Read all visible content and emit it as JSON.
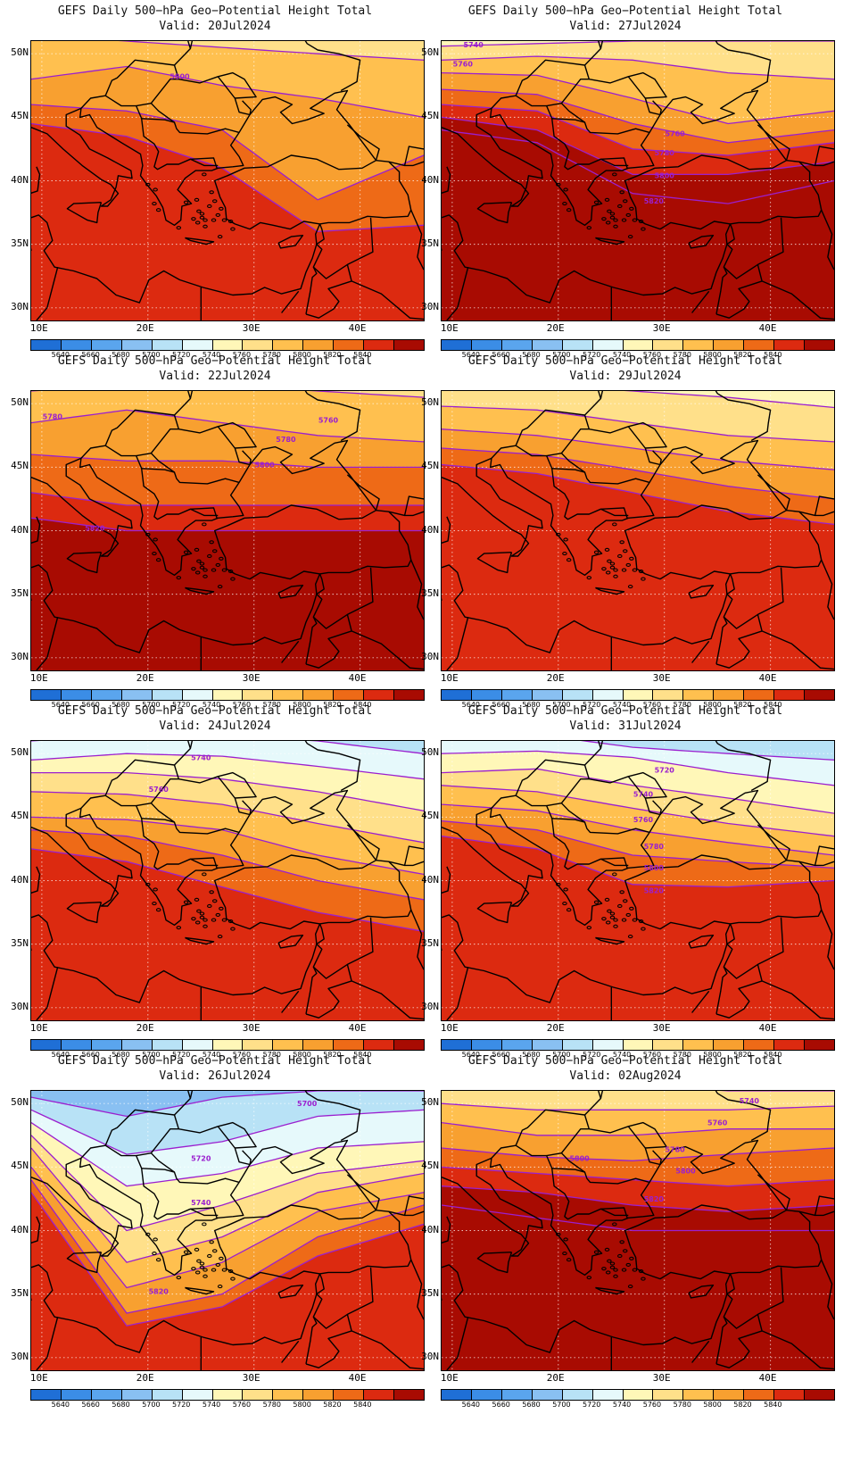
{
  "colorbar": {
    "levels": [
      "5640",
      "5660",
      "5680",
      "5700",
      "5720",
      "5740",
      "5760",
      "5780",
      "5800",
      "5820",
      "5840"
    ],
    "colors": [
      "#1f6fd6",
      "#3b8de6",
      "#5aa5ee",
      "#89c0f2",
      "#b8e2f6",
      "#e6f9fb",
      "#fff7b8",
      "#ffe08a",
      "#ffc04f",
      "#f8a030",
      "#ee6a17",
      "#dc2a10",
      "#a80b02"
    ]
  },
  "axes": {
    "yticks": [
      "50N",
      "45N",
      "40N",
      "35N",
      "30N"
    ],
    "xticks": [
      "10E",
      "20E",
      "30E",
      "40E"
    ],
    "lat_range": [
      29,
      51
    ],
    "lon_range": [
      9,
      46
    ]
  },
  "contour_color": "#9b1fcf",
  "panels": [
    {
      "title": "GEFS Daily 500−hPa Geo−Potential Height Total",
      "valid": "Valid: 20Jul2024",
      "labels": [
        {
          "text": "5800",
          "lon": 23,
          "lat": 48
        }
      ]
    },
    {
      "title": "GEFS Daily 500−hPa Geo−Potential Height Total",
      "valid": "Valid: 27Jul2024",
      "labels": [
        {
          "text": "5740",
          "lon": 12,
          "lat": 50.5
        },
        {
          "text": "5760",
          "lon": 11,
          "lat": 49
        },
        {
          "text": "5760",
          "lon": 31,
          "lat": 43.5
        },
        {
          "text": "5780",
          "lon": 30,
          "lat": 42
        },
        {
          "text": "5800",
          "lon": 30,
          "lat": 40.2
        },
        {
          "text": "5820",
          "lon": 29,
          "lat": 38.2
        }
      ]
    },
    {
      "title": "GEFS Daily 500−hPa Geo−Potential Height Total",
      "valid": "Valid: 22Jul2024",
      "labels": [
        {
          "text": "5780",
          "lon": 11,
          "lat": 48.8
        },
        {
          "text": "5760",
          "lon": 37,
          "lat": 48.5
        },
        {
          "text": "5780",
          "lon": 33,
          "lat": 47
        },
        {
          "text": "5800",
          "lon": 31,
          "lat": 45
        },
        {
          "text": "5820",
          "lon": 15,
          "lat": 40
        }
      ]
    },
    {
      "title": "GEFS Daily 500−hPa Geo−Potential Height Total",
      "valid": "Valid: 29Jul2024",
      "labels": []
    },
    {
      "title": "GEFS Daily 500−hPa Geo−Potential Height Total",
      "valid": "Valid: 24Jul2024",
      "labels": [
        {
          "text": "5740",
          "lon": 25,
          "lat": 49.5
        },
        {
          "text": "5760",
          "lon": 21,
          "lat": 47
        }
      ]
    },
    {
      "title": "GEFS Daily 500−hPa Geo−Potential Height Total",
      "valid": "Valid: 31Jul2024",
      "labels": [
        {
          "text": "5720",
          "lon": 30,
          "lat": 48.5
        },
        {
          "text": "5740",
          "lon": 28,
          "lat": 46.6
        },
        {
          "text": "5760",
          "lon": 28,
          "lat": 44.6
        },
        {
          "text": "5780",
          "lon": 29,
          "lat": 42.5
        },
        {
          "text": "5800",
          "lon": 29,
          "lat": 40.8
        },
        {
          "text": "5820",
          "lon": 29,
          "lat": 39
        }
      ]
    },
    {
      "title": "GEFS Daily 500−hPa Geo−Potential Height Total",
      "valid": "Valid: 26Jul2024",
      "labels": [
        {
          "text": "5700",
          "lon": 35,
          "lat": 49.8
        },
        {
          "text": "5720",
          "lon": 25,
          "lat": 45.5
        },
        {
          "text": "5740",
          "lon": 25,
          "lat": 42
        },
        {
          "text": "5820",
          "lon": 21,
          "lat": 35
        }
      ]
    },
    {
      "title": "GEFS Daily 500−hPa Geo−Potential Height Total",
      "valid": "Valid: 02Aug2024",
      "labels": [
        {
          "text": "5740",
          "lon": 38,
          "lat": 50
        },
        {
          "text": "5760",
          "lon": 35,
          "lat": 48.3
        },
        {
          "text": "5780",
          "lon": 31,
          "lat": 46.2
        },
        {
          "text": "5800",
          "lon": 22,
          "lat": 45.5
        },
        {
          "text": "5800",
          "lon": 32,
          "lat": 44.5
        },
        {
          "text": "5820",
          "lon": 29,
          "lat": 42.3
        }
      ]
    }
  ]
}
